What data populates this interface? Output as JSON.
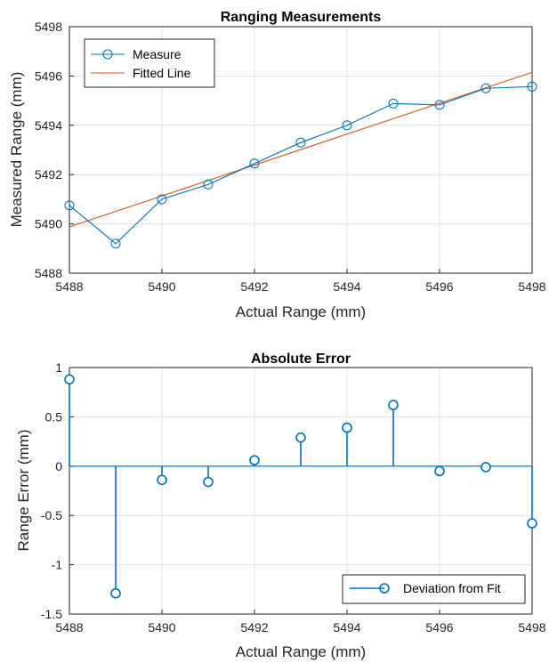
{
  "chart_data": [
    {
      "type": "line",
      "title": "Ranging Measurements",
      "xlabel": "Actual Range (mm)",
      "ylabel": "Measured Range (mm)",
      "xlim": [
        5488,
        5498
      ],
      "ylim": [
        5488,
        5498
      ],
      "xticks": [
        "5488",
        "5490",
        "5492",
        "5494",
        "5496",
        "5498"
      ],
      "yticks": [
        "5488",
        "5490",
        "5492",
        "5494",
        "5496",
        "5498"
      ],
      "grid": true,
      "legend_position": "top-left",
      "series": [
        {
          "name": "Measure",
          "style": "line-circle-markers",
          "color": "#0072BD",
          "x": [
            5488,
            5489,
            5490,
            5491,
            5492,
            5493,
            5494,
            5495,
            5496,
            5497,
            5498
          ],
          "y": [
            5490.75,
            5489.2,
            5491.0,
            5491.6,
            5492.45,
            5493.3,
            5494.0,
            5494.88,
            5494.83,
            5495.5,
            5495.57
          ]
        },
        {
          "name": "Fitted Line",
          "style": "line",
          "color": "#D95319",
          "x": [
            5488,
            5498
          ],
          "y": [
            5489.88,
            5496.15
          ]
        }
      ]
    },
    {
      "type": "stem",
      "title": "Absolute Error",
      "xlabel": "Actual Range (mm)",
      "ylabel": "Range Error (mm)",
      "xlim": [
        5488,
        5498
      ],
      "ylim": [
        -1.5,
        1
      ],
      "xticks": [
        "5488",
        "5490",
        "5492",
        "5494",
        "5496",
        "5498"
      ],
      "yticks": [
        "1",
        "0.5",
        "0",
        "-0.5",
        "-1",
        "-1.5"
      ],
      "grid": true,
      "legend_position": "bottom-right",
      "series": [
        {
          "name": "Deviation from Fit",
          "color": "#0072BD",
          "x": [
            5488,
            5489,
            5490,
            5491,
            5492,
            5493,
            5494,
            5495,
            5496,
            5497,
            5498
          ],
          "y": [
            0.88,
            -1.29,
            -0.14,
            -0.16,
            0.06,
            0.29,
            0.39,
            0.62,
            -0.05,
            -0.01,
            -0.58
          ]
        }
      ]
    }
  ]
}
